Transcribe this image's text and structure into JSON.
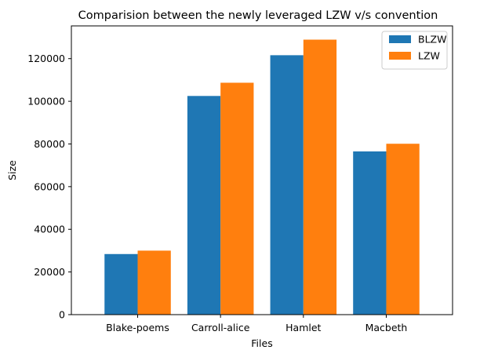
{
  "chart_data": {
    "type": "bar",
    "title": "Comparision between the newly leveraged LZW v/s convention",
    "xlabel": "Files",
    "ylabel": "Size",
    "categories": [
      "Blake-poems",
      "Carroll-alice",
      "Hamlet",
      "Macbeth"
    ],
    "series": [
      {
        "name": "BLZW",
        "color": "#1f77b4",
        "values": [
          28400,
          102500,
          121600,
          76500
        ]
      },
      {
        "name": "LZW",
        "color": "#ff7f0e",
        "values": [
          30000,
          108700,
          128900,
          80100
        ]
      }
    ],
    "ylim": [
      0,
      135345
    ],
    "yticks": [
      0,
      20000,
      40000,
      60000,
      80000,
      100000,
      120000
    ],
    "legend_position": "top-right",
    "grid": false
  }
}
